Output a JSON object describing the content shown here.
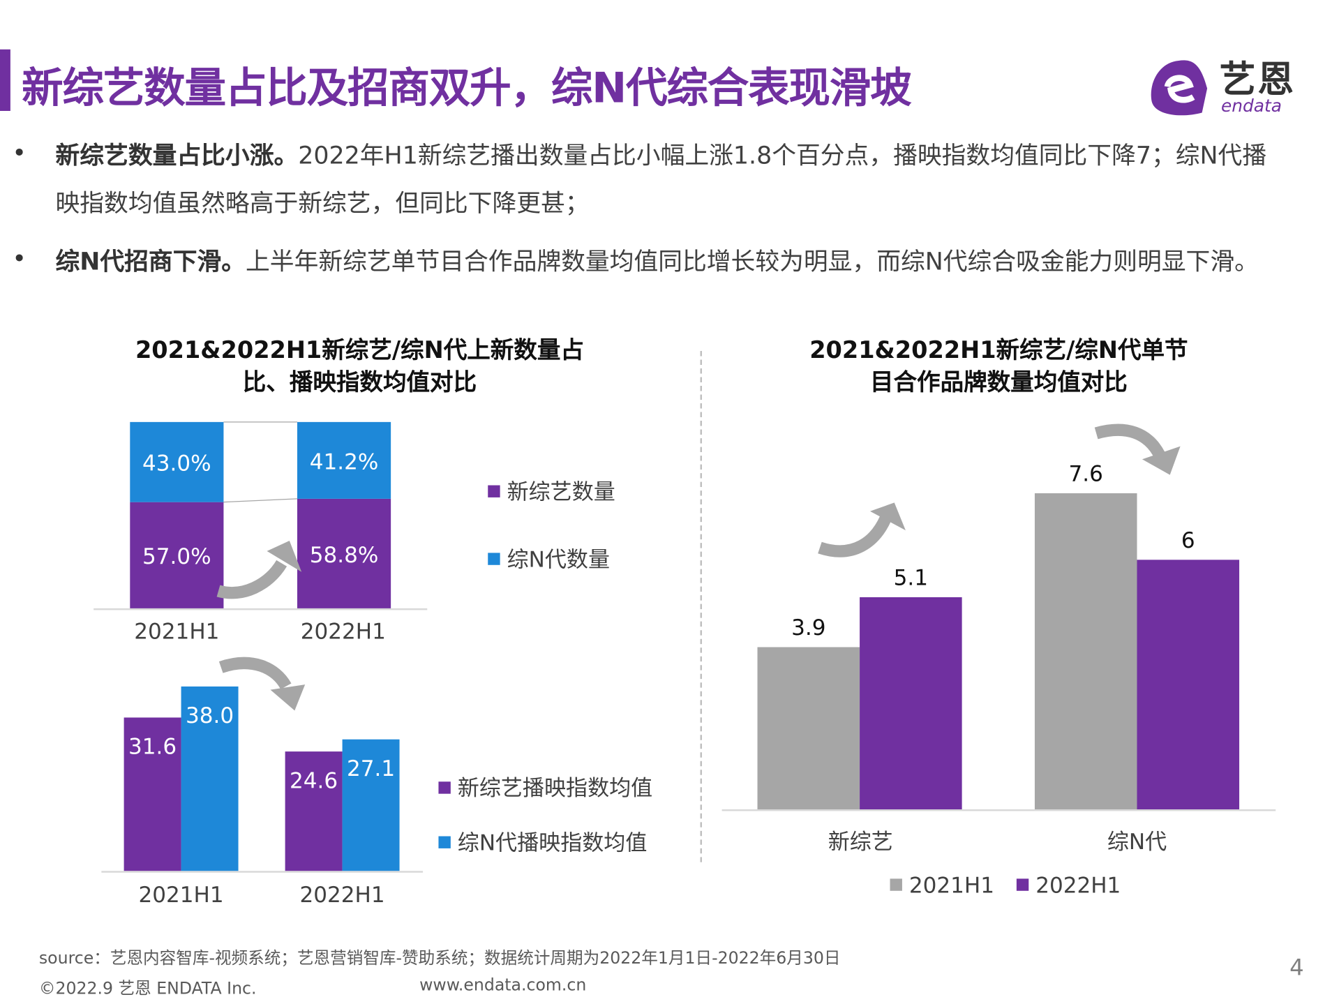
{
  "header": {
    "title": "新综艺数量占比及招商双升，综N代综合表现滑坡",
    "logo_text": "艺恩",
    "logo_sub": "endata"
  },
  "bullets": [
    {
      "bold": "新综艺数量占比小涨。",
      "text": "2022年H1新综艺播出数量占比小幅上涨1.8个百分点，播映指数均值同比下降7；综N代播映指数均值虽然略高于新综艺，但同比下降更甚；"
    },
    {
      "bold": "综N代招商下滑。",
      "text": "上半年新综艺单节目合作品牌数量均值同比增长较为明显，而综N代综合吸金能力则明显下滑。"
    }
  ],
  "colors": {
    "purple": "#7030a0",
    "blue": "#1e88d8",
    "gray": "#a6a6a6",
    "arrow": "#a6a6a6"
  },
  "chart_data": [
    {
      "type": "bar",
      "stacked": true,
      "title": "2021&2022H1新综艺/综N代上新数量占比、播映指数均值对比",
      "categories": [
        "2021H1",
        "2022H1"
      ],
      "series": [
        {
          "name": "新综艺数量",
          "values": [
            57.0,
            58.8
          ],
          "labels": [
            "57.0%",
            "58.8%"
          ],
          "color": "#7030a0"
        },
        {
          "name": "综N代数量",
          "values": [
            43.0,
            41.2
          ],
          "labels": [
            "43.0%",
            "41.2%"
          ],
          "color": "#1e88d8"
        }
      ],
      "ylim": [
        0,
        100
      ],
      "legend": "right"
    },
    {
      "type": "bar",
      "categories": [
        "2021H1",
        "2022H1"
      ],
      "series": [
        {
          "name": "新综艺播映指数均值",
          "values": [
            31.6,
            24.6
          ],
          "labels": [
            "31.6",
            "24.6"
          ],
          "color": "#7030a0"
        },
        {
          "name": "综N代播映指数均值",
          "values": [
            38.0,
            27.1
          ],
          "labels": [
            "38.0",
            "27.1"
          ],
          "color": "#1e88d8"
        }
      ],
      "legend": "right"
    },
    {
      "type": "bar",
      "title": "2021&2022H1新综艺/综N代单节目合作品牌数量均值对比",
      "categories": [
        "新综艺",
        "综N代"
      ],
      "series": [
        {
          "name": "2021H1",
          "values": [
            3.9,
            7.6
          ],
          "labels": [
            "3.9",
            "7.6"
          ],
          "color": "#a6a6a6"
        },
        {
          "name": "2022H1",
          "values": [
            5.1,
            6
          ],
          "labels": [
            "5.1",
            "6"
          ],
          "color": "#7030a0"
        }
      ],
      "legend": "bottom"
    }
  ],
  "footer": {
    "source": "source：艺恩内容智库-视频系统；艺恩营销智库-赞助系统；数据统计周期为2022年1月1日-2022年6月30日",
    "copyright": "©2022.9 艺恩 ENDATA Inc.",
    "website": "www.endata.com.cn",
    "page_number": "4"
  }
}
